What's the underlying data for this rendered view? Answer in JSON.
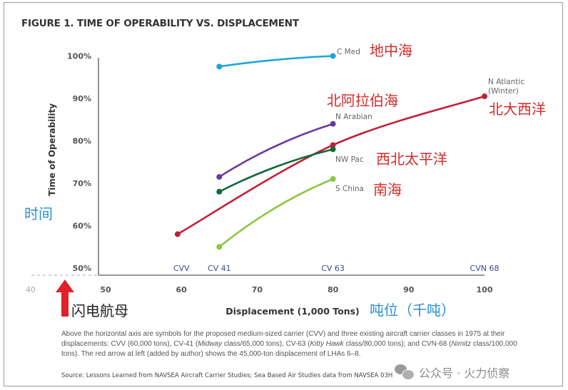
{
  "figure": {
    "title": "FIGURE 1. TIME OF OPERABILITY VS. DISPLACEMENT",
    "caption_parts": [
      {
        "t": "Above the horizontal axis are symbols for the proposed medium-sized carrier (CVV) and three existing aircraft carrier classes in 1975 at their displacements: CVV (60,000 tons), CV-41 ("
      },
      {
        "t": "Midway",
        "i": true
      },
      {
        "t": " class/65,000 tons), CV-63 ("
      },
      {
        "t": "Kitty Hawk",
        "i": true
      },
      {
        "t": " class/80,000 tons); and CVN-68 ("
      },
      {
        "t": "Nimitz",
        "i": true
      },
      {
        "t": " class/100,000 tons). The red arrow at left (added by author) shows the 45,000-ton displacement of LHAs 6–8."
      }
    ],
    "source": "Source: Lessons Learned from NAVSEA Aircraft Carrier Studies; Sea Based Air Studies data from NAVSEA 03H",
    "watermark": "公众号 · 火力侦察"
  },
  "annotations": {
    "y_axis_cn": "时间",
    "x_axis_cn": "吨位（千吨）",
    "arrow_label_cn": "闪电航母",
    "series_cn": {
      "C Med": "地中海",
      "N Arabian": "北阿拉伯海",
      "N Atlantic (Winter)": "北大西洋",
      "NW Pac": "西北太平洋",
      "S China": "南海"
    }
  },
  "chart_data": {
    "type": "line",
    "title": "FIGURE 1. TIME OF OPERABILITY VS. DISPLACEMENT",
    "xlabel": "Displacement (1,000 Tons)",
    "ylabel": "Time of Operability",
    "xlim": [
      40,
      100
    ],
    "ylim": [
      50,
      100
    ],
    "x_ticks": [
      50,
      60,
      70,
      80,
      90,
      100
    ],
    "x_tick_extra": 40,
    "y_ticks": [
      "50%",
      "60%",
      "70%",
      "80%",
      "90%",
      "100%"
    ],
    "y_tick_values": [
      50,
      60,
      70,
      80,
      90,
      100
    ],
    "grid": false,
    "carrier_markers": [
      {
        "label": "CVV",
        "x": 60
      },
      {
        "label": "CV 41",
        "x": 65
      },
      {
        "label": "CV 63",
        "x": 80
      },
      {
        "label": "CVN 68",
        "x": 100
      }
    ],
    "reference_arrow": {
      "x": 45,
      "color": "#e0202a"
    },
    "series": [
      {
        "name": "C Med",
        "color": "#1aa8d8",
        "points": [
          [
            65,
            97.5
          ],
          [
            80,
            100
          ]
        ]
      },
      {
        "name": "N Arabian",
        "color": "#6a3aa0",
        "points": [
          [
            65,
            71.5
          ],
          [
            80,
            84
          ]
        ]
      },
      {
        "name": "N Atlantic (Winter)",
        "color": "#c0203a",
        "points": [
          [
            59.5,
            58
          ],
          [
            80,
            79
          ],
          [
            100,
            90.5
          ]
        ]
      },
      {
        "name": "NW Pac",
        "color": "#0f6a3a",
        "points": [
          [
            65,
            68
          ],
          [
            80,
            78
          ]
        ]
      },
      {
        "name": "S China",
        "color": "#8cc63f",
        "points": [
          [
            65,
            55
          ],
          [
            80,
            71
          ]
        ]
      }
    ]
  }
}
